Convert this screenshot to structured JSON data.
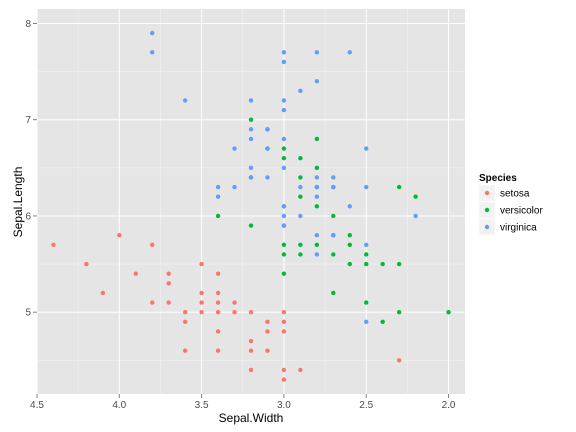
{
  "chart_data": {
    "type": "scatter",
    "xlabel": "Sepal.Width",
    "ylabel": "Sepal.Length",
    "x_reversed": true,
    "xlim": [
      4.5,
      1.9
    ],
    "ylim": [
      4.15,
      8.15
    ],
    "x_ticks": [
      "4.5",
      "4.0",
      "3.5",
      "3.0",
      "2.5",
      "2.0"
    ],
    "x_tick_values": [
      4.5,
      4.0,
      3.5,
      3.0,
      2.5,
      2.0
    ],
    "y_ticks": [
      "5",
      "6",
      "7",
      "8"
    ],
    "y_tick_values": [
      5,
      6,
      7,
      8
    ],
    "grid": true,
    "legend": {
      "title": "Species",
      "placement": "right"
    },
    "series": [
      {
        "name": "setosa",
        "color": "#F8766D",
        "points": [
          [
            4.4,
            5.7
          ],
          [
            4.2,
            5.5
          ],
          [
            4.1,
            5.2
          ],
          [
            4.0,
            5.8
          ],
          [
            3.9,
            5.4
          ],
          [
            3.8,
            5.7
          ],
          [
            3.8,
            5.1
          ],
          [
            3.7,
            5.4
          ],
          [
            3.7,
            5.3
          ],
          [
            3.7,
            5.1
          ],
          [
            3.6,
            5.0
          ],
          [
            3.6,
            4.9
          ],
          [
            3.6,
            4.6
          ],
          [
            3.5,
            5.5
          ],
          [
            3.5,
            5.2
          ],
          [
            3.5,
            5.1
          ],
          [
            3.5,
            5.0
          ],
          [
            3.4,
            5.4
          ],
          [
            3.4,
            5.2
          ],
          [
            3.4,
            5.1
          ],
          [
            3.4,
            5.0
          ],
          [
            3.4,
            4.8
          ],
          [
            3.4,
            4.6
          ],
          [
            3.3,
            5.1
          ],
          [
            3.3,
            5.0
          ],
          [
            3.2,
            5.0
          ],
          [
            3.2,
            4.7
          ],
          [
            3.2,
            4.6
          ],
          [
            3.2,
            4.4
          ],
          [
            3.1,
            4.9
          ],
          [
            3.1,
            4.8
          ],
          [
            3.1,
            4.6
          ],
          [
            3.0,
            5.0
          ],
          [
            3.0,
            4.9
          ],
          [
            3.0,
            4.8
          ],
          [
            3.0,
            4.4
          ],
          [
            3.0,
            4.3
          ],
          [
            2.9,
            4.4
          ],
          [
            2.3,
            4.5
          ]
        ]
      },
      {
        "name": "versicolor",
        "color": "#00BA38",
        "points": [
          [
            3.4,
            6.0
          ],
          [
            3.2,
            7.0
          ],
          [
            3.2,
            6.4
          ],
          [
            3.2,
            5.9
          ],
          [
            3.1,
            6.9
          ],
          [
            3.1,
            6.7
          ],
          [
            3.0,
            6.7
          ],
          [
            3.0,
            6.6
          ],
          [
            3.0,
            6.1
          ],
          [
            3.0,
            5.9
          ],
          [
            3.0,
            5.7
          ],
          [
            3.0,
            5.6
          ],
          [
            3.0,
            5.4
          ],
          [
            2.9,
            6.6
          ],
          [
            2.9,
            6.4
          ],
          [
            2.9,
            6.2
          ],
          [
            2.9,
            5.7
          ],
          [
            2.9,
            5.6
          ],
          [
            2.8,
            6.8
          ],
          [
            2.8,
            6.5
          ],
          [
            2.8,
            6.3
          ],
          [
            2.8,
            6.1
          ],
          [
            2.8,
            5.7
          ],
          [
            2.7,
            6.3
          ],
          [
            2.7,
            6.0
          ],
          [
            2.7,
            5.8
          ],
          [
            2.7,
            5.6
          ],
          [
            2.7,
            5.2
          ],
          [
            2.6,
            5.8
          ],
          [
            2.6,
            5.7
          ],
          [
            2.6,
            5.5
          ],
          [
            2.5,
            5.6
          ],
          [
            2.5,
            5.5
          ],
          [
            2.5,
            5.1
          ],
          [
            2.4,
            5.5
          ],
          [
            2.4,
            4.9
          ],
          [
            2.3,
            6.3
          ],
          [
            2.3,
            5.5
          ],
          [
            2.3,
            5.0
          ],
          [
            2.2,
            6.2
          ],
          [
            2.0,
            5.0
          ]
        ]
      },
      {
        "name": "virginica",
        "color": "#619CFF",
        "points": [
          [
            3.8,
            7.9
          ],
          [
            3.8,
            7.7
          ],
          [
            3.6,
            7.2
          ],
          [
            3.4,
            6.3
          ],
          [
            3.4,
            6.2
          ],
          [
            3.3,
            6.7
          ],
          [
            3.3,
            6.3
          ],
          [
            3.2,
            7.2
          ],
          [
            3.2,
            6.9
          ],
          [
            3.2,
            6.8
          ],
          [
            3.2,
            6.5
          ],
          [
            3.2,
            6.4
          ],
          [
            3.1,
            6.9
          ],
          [
            3.1,
            6.7
          ],
          [
            3.1,
            6.4
          ],
          [
            3.0,
            7.7
          ],
          [
            3.0,
            7.6
          ],
          [
            3.0,
            7.2
          ],
          [
            3.0,
            7.1
          ],
          [
            3.0,
            6.8
          ],
          [
            3.0,
            6.5
          ],
          [
            3.0,
            6.1
          ],
          [
            3.0,
            6.0
          ],
          [
            3.0,
            5.9
          ],
          [
            2.9,
            7.3
          ],
          [
            2.9,
            6.3
          ],
          [
            2.9,
            6.0
          ],
          [
            2.8,
            7.7
          ],
          [
            2.8,
            7.4
          ],
          [
            2.8,
            6.4
          ],
          [
            2.8,
            6.3
          ],
          [
            2.8,
            6.2
          ],
          [
            2.8,
            5.8
          ],
          [
            2.8,
            5.6
          ],
          [
            2.7,
            6.4
          ],
          [
            2.7,
            6.3
          ],
          [
            2.7,
            5.8
          ],
          [
            2.6,
            7.7
          ],
          [
            2.6,
            6.1
          ],
          [
            2.5,
            6.7
          ],
          [
            2.5,
            6.3
          ],
          [
            2.5,
            5.7
          ],
          [
            2.5,
            4.9
          ],
          [
            2.2,
            6.0
          ]
        ]
      }
    ]
  }
}
